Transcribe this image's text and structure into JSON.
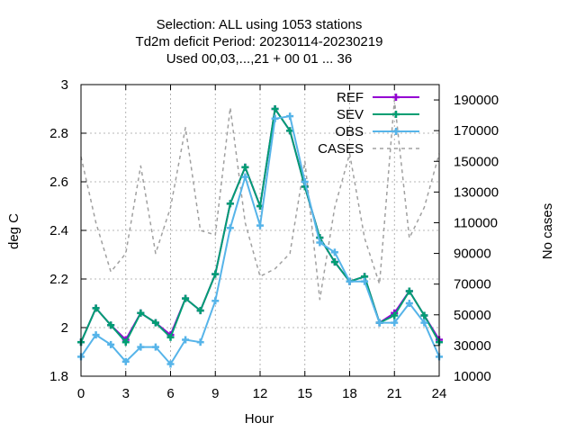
{
  "chart_data": {
    "type": "line",
    "title": [
      "Selection: ALL using  1053 stations",
      "Td2m deficit   Period: 20230114-20230219",
      "Used  00,03,...,21  + 00 01 ... 36"
    ],
    "xlabel": "Hour",
    "ylabel": "deg C",
    "y2label": "No cases",
    "xlim": [
      0,
      24
    ],
    "ylim": [
      1.8,
      3.0
    ],
    "y2lim": [
      10000,
      200000
    ],
    "xticks": [
      "0",
      "3",
      "6",
      "9",
      "12",
      "15",
      "18",
      "21",
      "24"
    ],
    "yticks": [
      "1.8",
      "2",
      "2.2",
      "2.4",
      "2.6",
      "2.8",
      "3"
    ],
    "y2ticks": [
      "10000",
      "30000",
      "50000",
      "70000",
      "90000",
      "110000",
      "130000",
      "150000",
      "170000",
      "190000"
    ],
    "grid": true,
    "legend_position": "top-right",
    "x": [
      0,
      1,
      2,
      3,
      4,
      5,
      6,
      7,
      8,
      9,
      10,
      11,
      12,
      13,
      14,
      15,
      16,
      17,
      18,
      19,
      20,
      21,
      22,
      23,
      24
    ],
    "series": [
      {
        "name": "REF",
        "color": "#9400d3",
        "marker": "plus",
        "axis": "left",
        "values": [
          1.94,
          2.08,
          2.01,
          1.95,
          2.06,
          2.02,
          1.97,
          2.12,
          2.07,
          2.22,
          2.51,
          2.66,
          2.5,
          2.9,
          2.81,
          2.58,
          2.37,
          2.27,
          2.19,
          2.21,
          2.02,
          2.06,
          2.15,
          2.05,
          1.95
        ]
      },
      {
        "name": "SEV",
        "color": "#009e73",
        "marker": "plus",
        "axis": "left",
        "values": [
          1.94,
          2.08,
          2.01,
          1.94,
          2.06,
          2.02,
          1.96,
          2.12,
          2.07,
          2.22,
          2.51,
          2.66,
          2.5,
          2.9,
          2.81,
          2.58,
          2.37,
          2.27,
          2.19,
          2.21,
          2.02,
          2.05,
          2.15,
          2.05,
          1.94
        ]
      },
      {
        "name": "OBS",
        "color": "#56b4e9",
        "marker": "plus",
        "axis": "left",
        "values": [
          1.88,
          1.97,
          1.93,
          1.86,
          1.92,
          1.92,
          1.85,
          1.95,
          1.94,
          2.11,
          2.41,
          2.62,
          2.42,
          2.86,
          2.87,
          2.6,
          2.35,
          2.31,
          2.19,
          2.19,
          2.02,
          2.02,
          2.1,
          2.02,
          1.88
        ]
      },
      {
        "name": "CASES",
        "color": "#a0a0a0",
        "marker": "none",
        "dashed": true,
        "axis": "right",
        "values": [
          153000,
          110000,
          78000,
          90000,
          147000,
          90000,
          120000,
          172000,
          105000,
          102000,
          185000,
          110000,
          75000,
          80000,
          90000,
          150000,
          60000,
          120000,
          155000,
          100000,
          70000,
          190000,
          100000,
          120000,
          155000
        ]
      }
    ]
  }
}
